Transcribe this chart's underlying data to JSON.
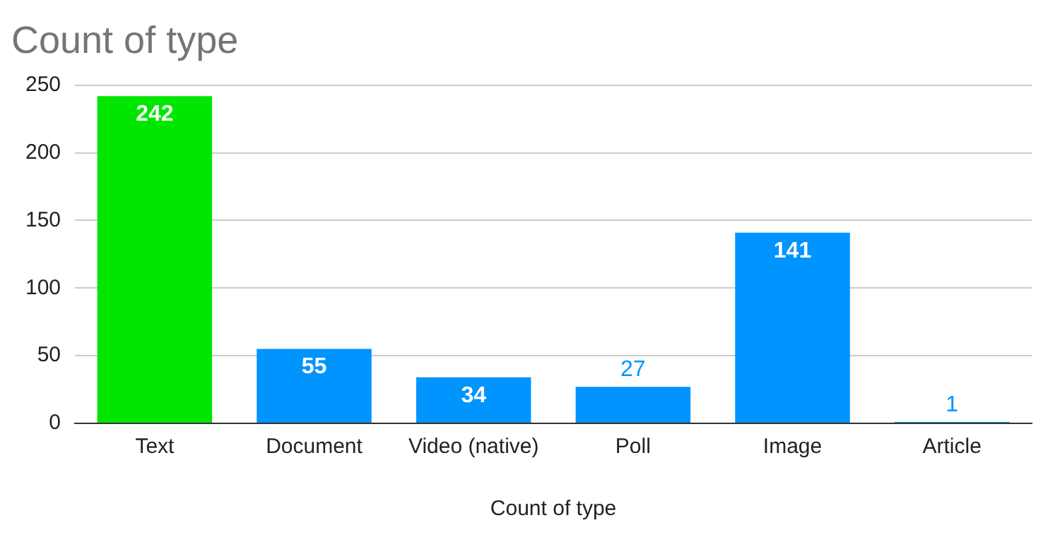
{
  "chart_data": {
    "type": "bar",
    "title": "Count of type",
    "xlabel": "Count of type",
    "categories": [
      "Text",
      "Document",
      "Video (native)",
      "Poll",
      "Image",
      "Article"
    ],
    "values": [
      242,
      55,
      34,
      27,
      141,
      1
    ],
    "colors": [
      "#00e600",
      "#0094ff",
      "#0094ff",
      "#0094ff",
      "#0094ff",
      "#0094ff"
    ],
    "ylim": [
      0,
      250
    ],
    "yticks": [
      0,
      50,
      100,
      150,
      200,
      250
    ],
    "grid": "y",
    "legend": false,
    "data_labels": true
  }
}
